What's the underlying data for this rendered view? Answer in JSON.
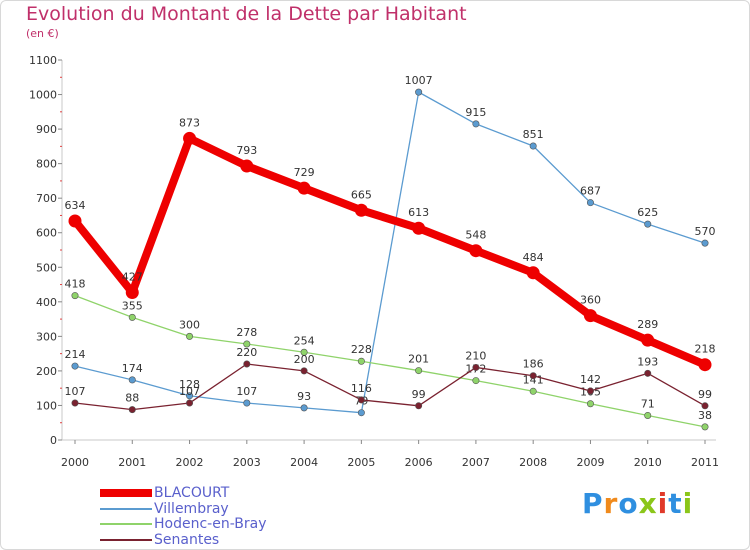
{
  "title": "Evolution du Montant de la Dette par Habitant",
  "subtitle": "(en €)",
  "logo": {
    "text": "Proxiti",
    "colors": [
      "#2f8fe0",
      "#f08a1c",
      "#2f8fe0",
      "#8bc61a",
      "#e03a2a",
      "#2f8fe0",
      "#8bc61a"
    ]
  },
  "chart_data": {
    "type": "line",
    "x": [
      "2000",
      "2001",
      "2002",
      "2003",
      "2004",
      "2005",
      "2006",
      "2007",
      "2008",
      "2009",
      "2010",
      "2011"
    ],
    "ylim": [
      0,
      1100
    ],
    "yticks": [
      "0",
      "100",
      "200",
      "300",
      "400",
      "500",
      "600",
      "700",
      "800",
      "900",
      "1000",
      "1100"
    ],
    "grid": false,
    "legend_position": "bottom-left",
    "series": [
      {
        "name": "BLACOURT",
        "color": "#ee0000",
        "values": [
          634,
          427,
          873,
          793,
          729,
          665,
          613,
          548,
          484,
          360,
          289,
          218
        ]
      },
      {
        "name": "Villembray",
        "color": "#5b9bd0",
        "values": [
          214,
          174,
          128,
          107,
          93,
          79,
          1007,
          915,
          851,
          687,
          625,
          570
        ]
      },
      {
        "name": "Hodenc-en-Bray",
        "color": "#8fd36a",
        "values": [
          418,
          355,
          300,
          278,
          254,
          228,
          201,
          172,
          141,
          105,
          71,
          38
        ]
      },
      {
        "name": "Senantes",
        "color": "#7a2230",
        "values": [
          107,
          88,
          107,
          220,
          200,
          116,
          99,
          210,
          186,
          142,
          193,
          99
        ]
      }
    ]
  }
}
